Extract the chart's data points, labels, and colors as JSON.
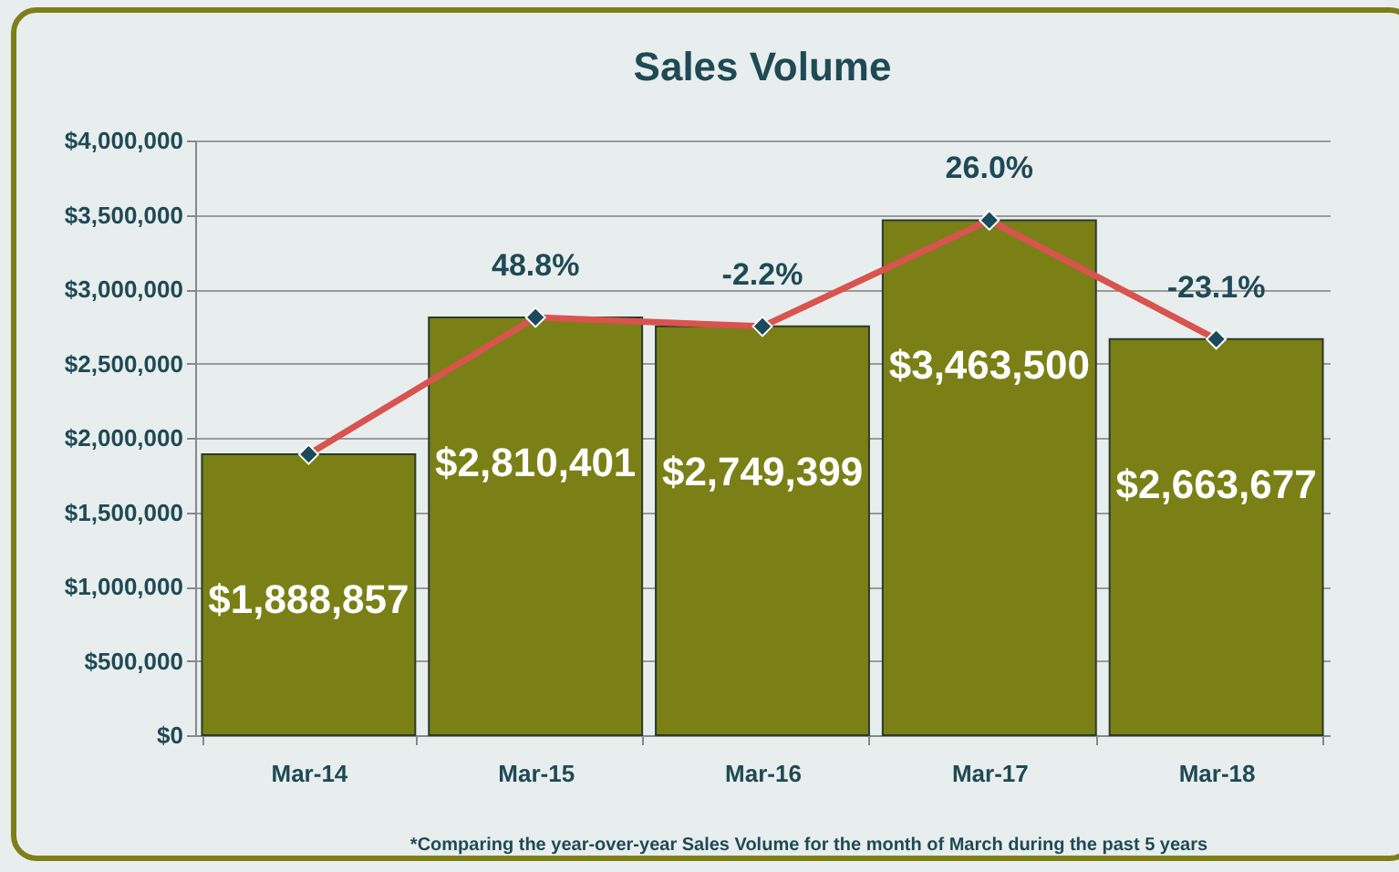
{
  "chart_data": {
    "type": "bar",
    "title": "Sales Volume",
    "categories": [
      "Mar-14",
      "Mar-15",
      "Mar-16",
      "Mar-17",
      "Mar-18"
    ],
    "series": [
      {
        "color": "#7a8016",
        "values": [
          1888857,
          2810401,
          2749399,
          3463500,
          2663677
        ],
        "value_labels": [
          "$1,888,857",
          "$2,810,401",
          "$2,749,399",
          "$3,463,500",
          "$2,663,677"
        ]
      },
      {
        "type": "line",
        "color": "#d9534f",
        "values": [
          1888857,
          2810401,
          2749399,
          3463500,
          2663677
        ]
      }
    ],
    "ylim": [
      0,
      4000000
    ],
    "yticks": [
      {
        "value": 0,
        "label": "$0"
      },
      {
        "value": 500000,
        "label": "$500,000"
      },
      {
        "value": 1000000,
        "label": "$1,000,000"
      },
      {
        "value": 1500000,
        "label": "$1,500,000"
      },
      {
        "value": 2000000,
        "label": "$2,000,000"
      },
      {
        "value": 2500000,
        "label": "$2,500,000"
      },
      {
        "value": 3000000,
        "label": "$3,000,000"
      },
      {
        "value": 3500000,
        "label": "$3,500,000"
      },
      {
        "value": 4000000,
        "label": "$4,000,000"
      }
    ],
    "grid": "y",
    "marker": "diamond",
    "annotations": [
      {
        "text": "48.8%",
        "x": "Mar-15",
        "y": 2810401
      },
      {
        "text": "-2.2%",
        "x": "Mar-16",
        "y": 2749399
      },
      {
        "text": "26.0%",
        "x": "Mar-17",
        "y": 3463500
      },
      {
        "text": "-23.1%",
        "x": "Mar-18",
        "y": 2663677
      },
      "*Comparing the year-over-year Sales Volume for the month of March during the past 5 years"
    ]
  }
}
